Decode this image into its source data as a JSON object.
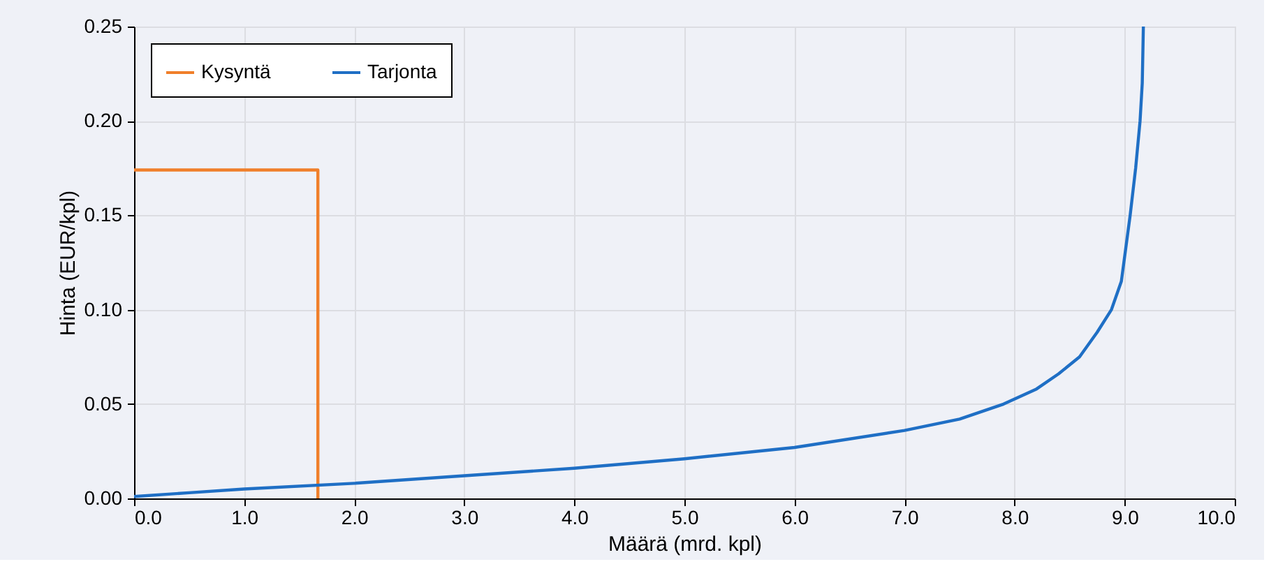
{
  "chart_data": {
    "type": "line",
    "xlabel": "Määrä (mrd. kpl)",
    "ylabel": "Hinta (EUR/kpl)",
    "xlim": [
      0,
      10
    ],
    "xticks": [
      {
        "value": 0,
        "label": "0.0"
      },
      {
        "value": 1,
        "label": "1.0"
      },
      {
        "value": 2,
        "label": "2.0"
      },
      {
        "value": 3,
        "label": "3.0"
      },
      {
        "value": 4,
        "label": "4.0"
      },
      {
        "value": 5,
        "label": "5.0"
      },
      {
        "value": 6,
        "label": "6.0"
      },
      {
        "value": 7,
        "label": "7.0"
      },
      {
        "value": 8,
        "label": "8.0"
      },
      {
        "value": 9,
        "label": "9.0"
      },
      {
        "value": 10,
        "label": "10.0"
      }
    ],
    "ylim": [
      0,
      0.25
    ],
    "yticks": [
      {
        "value": 0,
        "label": "0.00"
      },
      {
        "value": 0.05,
        "label": "0.05"
      },
      {
        "value": 0.1,
        "label": "0.10"
      },
      {
        "value": 0.15,
        "label": "0.15"
      },
      {
        "value": 0.2,
        "label": "0.20"
      },
      {
        "value": 0.25,
        "label": "0.25"
      }
    ],
    "grid": true,
    "legend": "top left",
    "marker": "none",
    "line_style": "solid",
    "series": [
      {
        "name": "Kysyntä",
        "color": "#f07f2a",
        "x": [
          0,
          1.67,
          1.67
        ],
        "values": [
          0.174,
          0.174,
          0
        ]
      },
      {
        "name": "Tarjonta",
        "color": "#1f6fc5",
        "x": [
          0,
          0.5,
          1,
          2,
          3,
          4,
          5,
          6,
          7,
          7.5,
          7.9,
          8.2,
          8.4,
          8.59,
          8.75,
          8.88,
          8.97,
          9.05,
          9.1,
          9.14,
          9.16,
          9.17
        ],
        "values": [
          0.001,
          0.003,
          0.005,
          0.008,
          0.012,
          0.016,
          0.021,
          0.027,
          0.036,
          0.042,
          0.05,
          0.058,
          0.066,
          0.075,
          0.088,
          0.1,
          0.115,
          0.15,
          0.175,
          0.2,
          0.22,
          0.25
        ]
      }
    ]
  }
}
